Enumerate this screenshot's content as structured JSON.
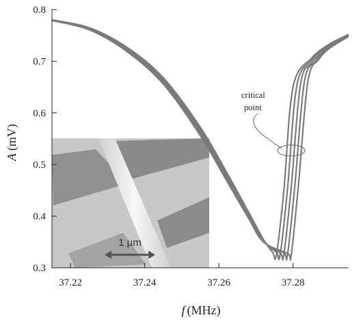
{
  "chart_data": {
    "type": "line",
    "xlabel": {
      "symbol": "f",
      "unit": "(MHz)"
    },
    "ylabel": {
      "symbol": "A",
      "unit": "(mV)"
    },
    "xlim": [
      37.215,
      37.295
    ],
    "ylim": [
      0.3,
      0.8
    ],
    "x_ticks": [
      37.22,
      37.24,
      37.26,
      37.28
    ],
    "x_tick_labels": [
      "37.22",
      "37.24",
      "37.26",
      "37.28"
    ],
    "y_ticks": [
      0.3,
      0.4,
      0.5,
      0.6,
      0.7,
      0.8
    ],
    "y_tick_labels": [
      "0.3",
      "0.4",
      "0.5",
      "0.6",
      "0.7",
      "0.8"
    ],
    "grid": false,
    "line_color": "#7a7a7a",
    "annotation": {
      "text_lines": [
        "critical",
        "point"
      ],
      "x": 37.2795,
      "y": 0.527
    },
    "inset": {
      "scale_bar_label": "1 µm"
    },
    "series": [
      {
        "dip_f": 37.275,
        "x": [
          37.215,
          37.225,
          37.235,
          37.245,
          37.255,
          37.262,
          37.268,
          37.272,
          37.2745,
          37.2755,
          37.2775,
          37.28,
          37.285,
          37.29,
          37.295
        ],
        "y": [
          0.78,
          0.765,
          0.728,
          0.668,
          0.572,
          0.486,
          0.408,
          0.355,
          0.33,
          0.325,
          0.448,
          0.65,
          0.706,
          0.734,
          0.752
        ]
      },
      {
        "dip_f": 37.276,
        "x": [
          37.215,
          37.225,
          37.235,
          37.245,
          37.255,
          37.262,
          37.268,
          37.272,
          37.2755,
          37.2765,
          37.2785,
          37.281,
          37.285,
          37.29,
          37.295
        ],
        "y": [
          0.78,
          0.764,
          0.726,
          0.665,
          0.568,
          0.482,
          0.405,
          0.353,
          0.33,
          0.325,
          0.452,
          0.652,
          0.702,
          0.732,
          0.751
        ]
      },
      {
        "dip_f": 37.277,
        "x": [
          37.215,
          37.225,
          37.235,
          37.245,
          37.255,
          37.262,
          37.268,
          37.272,
          37.2765,
          37.2775,
          37.2795,
          37.282,
          37.285,
          37.29,
          37.295
        ],
        "y": [
          0.779,
          0.763,
          0.724,
          0.662,
          0.564,
          0.478,
          0.402,
          0.352,
          0.329,
          0.325,
          0.456,
          0.655,
          0.697,
          0.73,
          0.75
        ]
      },
      {
        "dip_f": 37.278,
        "x": [
          37.215,
          37.225,
          37.235,
          37.245,
          37.255,
          37.262,
          37.268,
          37.272,
          37.2775,
          37.2785,
          37.2805,
          37.283,
          37.286,
          37.29,
          37.295
        ],
        "y": [
          0.779,
          0.762,
          0.722,
          0.659,
          0.56,
          0.474,
          0.399,
          0.351,
          0.329,
          0.325,
          0.46,
          0.658,
          0.7,
          0.728,
          0.749
        ]
      },
      {
        "dip_f": 37.279,
        "x": [
          37.215,
          37.225,
          37.235,
          37.245,
          37.255,
          37.262,
          37.268,
          37.272,
          37.2785,
          37.2795,
          37.2815,
          37.284,
          37.287,
          37.29,
          37.295
        ],
        "y": [
          0.779,
          0.761,
          0.72,
          0.656,
          0.556,
          0.47,
          0.396,
          0.35,
          0.328,
          0.325,
          0.464,
          0.661,
          0.704,
          0.726,
          0.748
        ]
      }
    ]
  }
}
